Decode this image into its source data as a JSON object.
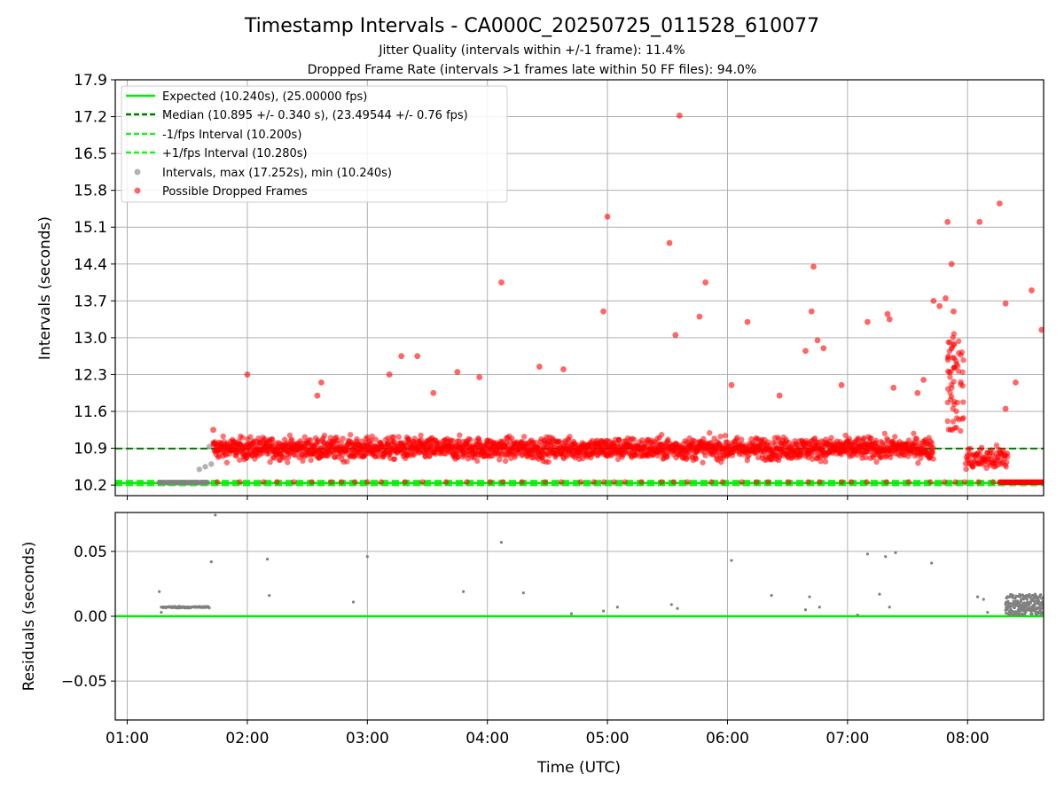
{
  "title": "Timestamp Intervals - CA000C_20250725_011528_610077",
  "subtitle1": "Jitter Quality (intervals within +/-1 frame): 11.4%",
  "subtitle2": "Dropped Frame Rate (intervals >1 frames late within 50 FF files): 94.0%",
  "colors": {
    "expected": "#00ee00",
    "median": "#007700",
    "bound": "#22ee22",
    "intervals": "#808080",
    "dropped": "#ff0000",
    "grid": "#b0b0b0"
  },
  "chart_data": [
    {
      "type": "scatter",
      "ylabel": "Intervals (seconds)",
      "ylim": [
        10.0,
        17.9
      ],
      "yticks": [
        "10.2",
        "10.9",
        "11.6",
        "12.3",
        "13.0",
        "13.7",
        "14.4",
        "15.1",
        "15.8",
        "16.5",
        "17.2",
        "17.9"
      ],
      "xlim": [
        "00:54",
        "08:38"
      ],
      "grid": true,
      "legend_position": "upper-left",
      "legend": [
        "Expected (10.240s), (25.00000 fps)",
        "Median (10.895 +/- 0.340 s), (23.49544 +/- 0.76 fps)",
        "-1/fps Interval (10.200s)",
        "+1/fps Interval (10.280s)",
        "Intervals, max (17.252s), min (10.240s)",
        "Possible Dropped Frames"
      ],
      "lines": {
        "expected": 10.24,
        "median": 10.895,
        "minus_one_fps": 10.2,
        "plus_one_fps": 10.28
      },
      "intervals_points": [
        [
          "01:16",
          10.25
        ],
        [
          "01:20",
          10.25
        ],
        [
          "01:25",
          10.25
        ],
        [
          "01:30",
          10.25
        ],
        [
          "01:35",
          10.25
        ],
        [
          "01:40",
          10.25
        ],
        [
          "01:36",
          10.5
        ],
        [
          "01:39",
          10.55
        ],
        [
          "01:41",
          10.93
        ],
        [
          "01:42",
          10.6
        ]
      ],
      "dropped_sample_points": [
        [
          "01:43",
          11.25
        ],
        [
          "02:00",
          12.3
        ],
        [
          "02:35",
          11.9
        ],
        [
          "02:37",
          12.15
        ],
        [
          "03:11",
          12.3
        ],
        [
          "03:17",
          12.65
        ],
        [
          "03:25",
          12.65
        ],
        [
          "03:33",
          11.95
        ],
        [
          "03:45",
          12.35
        ],
        [
          "03:56",
          12.25
        ],
        [
          "04:07",
          14.05
        ],
        [
          "04:26",
          12.45
        ],
        [
          "04:38",
          12.4
        ],
        [
          "04:58",
          13.5
        ],
        [
          "05:00",
          15.3
        ],
        [
          "05:31",
          14.8
        ],
        [
          "05:34",
          13.05
        ],
        [
          "05:36",
          17.22
        ],
        [
          "05:46",
          13.4
        ],
        [
          "05:49",
          14.05
        ],
        [
          "06:02",
          12.1
        ],
        [
          "06:10",
          13.3
        ],
        [
          "06:26",
          11.9
        ],
        [
          "06:39",
          12.75
        ],
        [
          "06:42",
          13.5
        ],
        [
          "06:43",
          14.35
        ],
        [
          "06:45",
          12.95
        ],
        [
          "06:48",
          12.8
        ],
        [
          "06:57",
          12.1
        ],
        [
          "07:10",
          13.3
        ],
        [
          "07:20",
          13.45
        ],
        [
          "07:21",
          13.35
        ],
        [
          "07:23",
          12.05
        ],
        [
          "07:35",
          11.95
        ],
        [
          "07:38",
          12.2
        ],
        [
          "07:43",
          13.7
        ],
        [
          "07:46",
          13.6
        ],
        [
          "07:49",
          13.75
        ],
        [
          "07:50",
          15.2
        ],
        [
          "07:52",
          14.4
        ],
        [
          "07:53",
          13.5
        ],
        [
          "08:06",
          15.2
        ],
        [
          "08:16",
          15.55
        ],
        [
          "08:19",
          13.65
        ],
        [
          "08:19",
          11.65
        ],
        [
          "08:24",
          12.15
        ],
        [
          "08:32",
          13.9
        ],
        [
          "08:37",
          13.15
        ]
      ]
    },
    {
      "type": "scatter",
      "ylabel": "Residuals (seconds)",
      "yticks": [
        "0.05",
        "0.00",
        "−0.05"
      ],
      "ylim": [
        -0.08,
        0.08
      ],
      "xlabel": "Time (UTC)",
      "xticks": [
        "01:00",
        "02:00",
        "03:00",
        "04:00",
        "05:00",
        "06:00",
        "07:00",
        "08:00"
      ],
      "grid": true,
      "zero_line": 0.0,
      "points": [
        [
          "01:16",
          0.019
        ],
        [
          "01:17",
          0.003
        ],
        [
          "01:44",
          0.078
        ],
        [
          "01:42",
          0.042
        ],
        [
          "02:10",
          0.044
        ],
        [
          "02:11",
          0.016
        ],
        [
          "02:53",
          0.011
        ],
        [
          "03:00",
          0.046
        ],
        [
          "03:48",
          0.019
        ],
        [
          "04:07",
          0.057
        ],
        [
          "04:18",
          0.018
        ],
        [
          "04:42",
          0.002
        ],
        [
          "04:58",
          0.004
        ],
        [
          "05:05",
          0.007
        ],
        [
          "05:32",
          0.009
        ],
        [
          "05:35",
          0.006
        ],
        [
          "06:02",
          0.043
        ],
        [
          "06:22",
          0.016
        ],
        [
          "06:39",
          0.005
        ],
        [
          "06:41",
          0.015
        ],
        [
          "06:46",
          0.007
        ],
        [
          "07:05",
          0.001
        ],
        [
          "07:10",
          0.048
        ],
        [
          "07:16",
          0.017
        ],
        [
          "07:19",
          0.046
        ],
        [
          "07:21",
          0.007
        ],
        [
          "07:24",
          0.049
        ],
        [
          "07:42",
          0.041
        ],
        [
          "08:05",
          0.015
        ],
        [
          "08:08",
          0.013
        ],
        [
          "08:10",
          0.003
        ]
      ]
    }
  ]
}
